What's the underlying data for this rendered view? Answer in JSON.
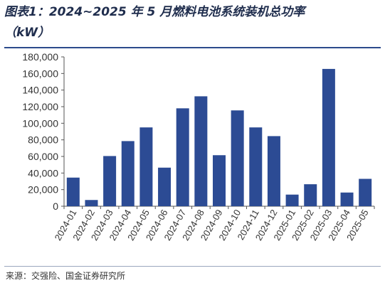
{
  "header": {
    "title_line1": "图表1：2024~2025 年 5 月燃料电池系统装机总功率",
    "title_line2": "（kW）"
  },
  "footer": {
    "source": "来源：交强险、国金证券研究所"
  },
  "colors": {
    "bar": "#2c4b94",
    "axis": "#555555",
    "rule": "#2c4b8c"
  },
  "chart_data": {
    "type": "bar",
    "categories": [
      "2024-01",
      "2024-02",
      "2024-03",
      "2024-04",
      "2024-05",
      "2024-06",
      "2024-07",
      "2024-08",
      "2024-09",
      "2024-10",
      "2024-11",
      "2024-12",
      "2025-01",
      "2025-02",
      "2025-03",
      "2025-04",
      "2025-05"
    ],
    "values": [
      34500,
      7500,
      60500,
      78500,
      95000,
      46500,
      118000,
      132500,
      61500,
      115500,
      95000,
      84500,
      14000,
      26500,
      165500,
      16500,
      33000
    ],
    "yticks": [
      "0",
      "20,000",
      "40,000",
      "60,000",
      "80,000",
      "100,000",
      "120,000",
      "140,000",
      "160,000",
      "180,000"
    ],
    "ylim": [
      0,
      180000
    ],
    "xlabel": "",
    "ylabel": "",
    "grid": false,
    "legend": false
  }
}
